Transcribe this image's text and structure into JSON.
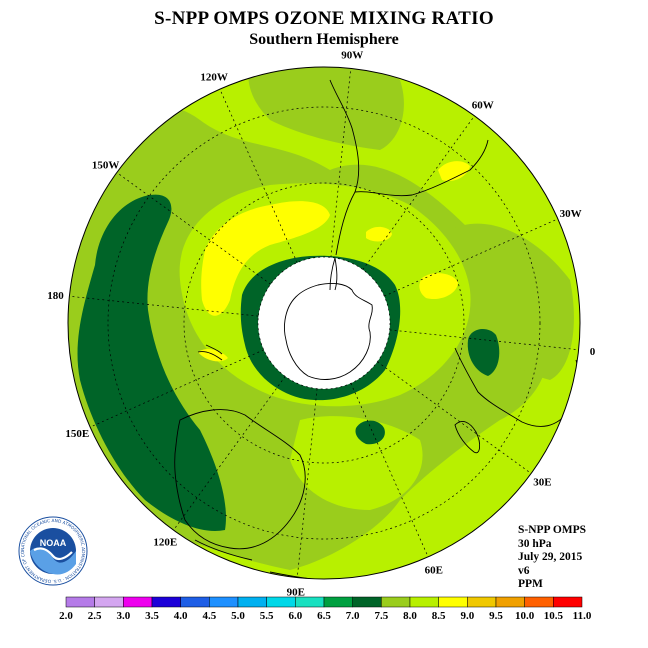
{
  "title": "S-NPP OMPS OZONE MIXING RATIO",
  "subtitle": "Southern Hemisphere",
  "info": {
    "product": "S-NPP OMPS",
    "pressure": "30 hPa",
    "date": "July 29, 2015",
    "version": "v6",
    "units": "PPM"
  },
  "logo": {
    "text": "NOAA",
    "ring_text": "NATIONAL OCEANIC AND ATMOSPHERIC ADMINISTRATION · U.S. DEPARTMENT OF COMMERCE"
  },
  "longitude_labels": [
    "90W",
    "60W",
    "30W",
    "0",
    "30E",
    "60E",
    "90E",
    "120E",
    "150E",
    "180",
    "150W",
    "120W"
  ],
  "colorbar": {
    "ticks": [
      "2.0",
      "2.5",
      "3.0",
      "3.5",
      "4.0",
      "4.5",
      "5.0",
      "5.5",
      "6.0",
      "6.5",
      "7.0",
      "7.5",
      "8.0",
      "8.5",
      "9.0",
      "9.5",
      "10.0",
      "10.5",
      "11.0"
    ],
    "colors": [
      "#b57be8",
      "#d4a6f0",
      "#ee00ee",
      "#1c00d8",
      "#1e5ee6",
      "#1e90ff",
      "#00b0f0",
      "#00d8e8",
      "#18e0c0",
      "#00a040",
      "#006428",
      "#9acd1c",
      "#b8f000",
      "#ffff00",
      "#f0c800",
      "#f0a000",
      "#ff6000",
      "#ff0000",
      "#8b5a3c"
    ]
  },
  "map_colors": {
    "c_7_0": "#006428",
    "c_7_5": "#9acd1c",
    "c_8_0": "#b8f000",
    "c_8_5": "#ffff00",
    "pole": "#ffffff"
  }
}
